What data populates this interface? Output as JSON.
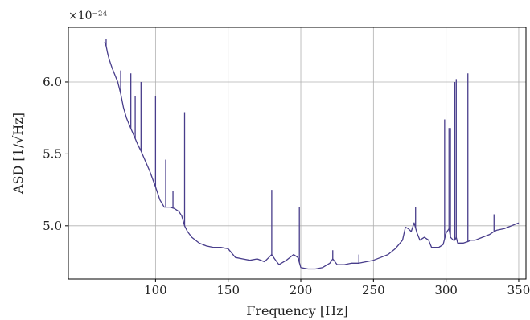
{
  "chart_data": {
    "type": "line",
    "title": "",
    "xlabel": "Frequency [Hz]",
    "ylabel": "ASD [1/√Hz]",
    "y_multiplier": "×10⁻²⁴",
    "xlim": [
      40,
      355
    ],
    "ylim": [
      4.63,
      6.38
    ],
    "x_ticks": [
      100,
      150,
      200,
      250,
      300,
      350
    ],
    "y_ticks": [
      5.0,
      5.5,
      6.0
    ],
    "x_tick_labels": [
      "100",
      "150",
      "200",
      "250",
      "300",
      "350"
    ],
    "y_tick_labels": [
      "5.0",
      "5.5",
      "6.0"
    ],
    "grid": true,
    "legend": "none",
    "line_color": "#483d8b",
    "series": [
      {
        "x": [
          65,
          66,
          67,
          68,
          69,
          70,
          72,
          74,
          76,
          78,
          80,
          82,
          85,
          88,
          90,
          93,
          96,
          100,
          103,
          106,
          110,
          113,
          116,
          118,
          120,
          122,
          125,
          130,
          135,
          140,
          145,
          150,
          155,
          160,
          165,
          170,
          175,
          178,
          180,
          182,
          185,
          190,
          195,
          198,
          200,
          205,
          210,
          215,
          220,
          222,
          225,
          230,
          235,
          240,
          245,
          250,
          255,
          260,
          265,
          270,
          272,
          274,
          276,
          278,
          280,
          282,
          285,
          288,
          290,
          295,
          298,
          300,
          302,
          303,
          305,
          306,
          307,
          308,
          310,
          312,
          315,
          317,
          320,
          325,
          330,
          333,
          335,
          340,
          345,
          350
        ],
        "y": [
          6.28,
          6.25,
          6.2,
          6.16,
          6.13,
          6.1,
          6.05,
          6.0,
          5.92,
          5.82,
          5.75,
          5.7,
          5.63,
          5.56,
          5.52,
          5.45,
          5.38,
          5.27,
          5.18,
          5.13,
          5.13,
          5.12,
          5.1,
          5.07,
          5.0,
          4.96,
          4.92,
          4.88,
          4.86,
          4.85,
          4.85,
          4.84,
          4.78,
          4.77,
          4.76,
          4.77,
          4.75,
          4.78,
          4.8,
          4.77,
          4.73,
          4.76,
          4.8,
          4.78,
          4.71,
          4.7,
          4.7,
          4.71,
          4.74,
          4.77,
          4.73,
          4.73,
          4.74,
          4.74,
          4.75,
          4.76,
          4.78,
          4.8,
          4.84,
          4.9,
          4.99,
          4.98,
          4.96,
          5.02,
          4.95,
          4.9,
          4.92,
          4.9,
          4.85,
          4.85,
          4.87,
          4.95,
          4.98,
          4.92,
          4.9,
          4.9,
          4.92,
          4.88,
          4.88,
          4.88,
          4.89,
          4.9,
          4.9,
          4.92,
          4.94,
          4.96,
          4.97,
          4.98,
          5.0,
          5.02
        ]
      }
    ],
    "peaks": [
      {
        "x": 66,
        "y": 6.3
      },
      {
        "x": 76,
        "y": 6.08
      },
      {
        "x": 83,
        "y": 6.06
      },
      {
        "x": 86,
        "y": 5.9
      },
      {
        "x": 90,
        "y": 6.0
      },
      {
        "x": 100,
        "y": 5.9
      },
      {
        "x": 107,
        "y": 5.46
      },
      {
        "x": 112,
        "y": 5.24
      },
      {
        "x": 120,
        "y": 5.79
      },
      {
        "x": 180,
        "y": 5.25
      },
      {
        "x": 199,
        "y": 5.13
      },
      {
        "x": 222,
        "y": 4.83
      },
      {
        "x": 240,
        "y": 4.8
      },
      {
        "x": 279,
        "y": 5.13
      },
      {
        "x": 299,
        "y": 5.74
      },
      {
        "x": 302,
        "y": 5.68
      },
      {
        "x": 303,
        "y": 5.68
      },
      {
        "x": 306,
        "y": 6.0
      },
      {
        "x": 307,
        "y": 6.02
      },
      {
        "x": 315,
        "y": 6.06
      },
      {
        "x": 333,
        "y": 5.08
      }
    ]
  }
}
